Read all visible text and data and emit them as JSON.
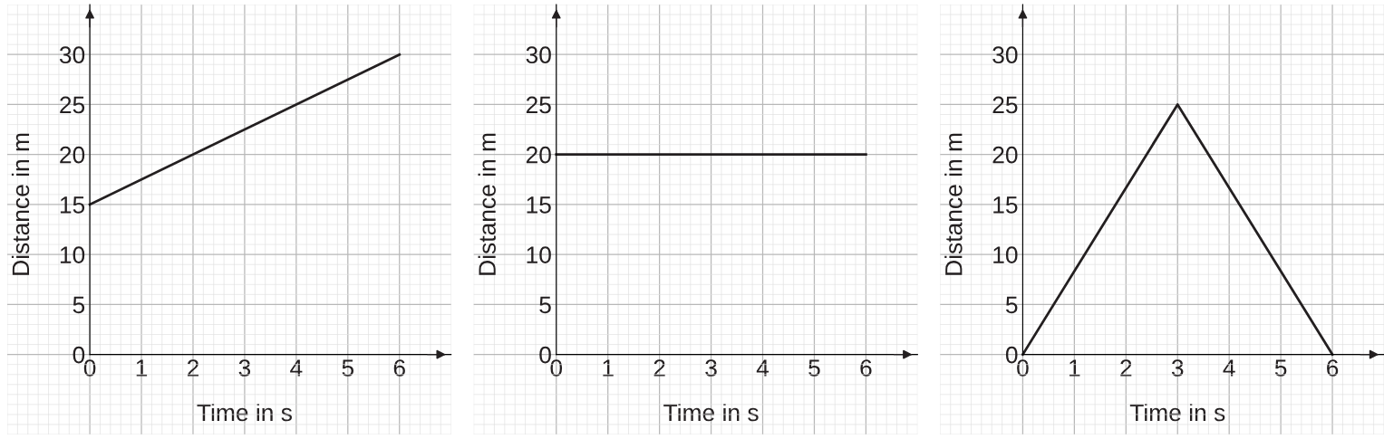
{
  "chart_data": [
    {
      "type": "line",
      "xlabel": "Time in s",
      "ylabel": "Distance in m",
      "x": [
        0,
        6
      ],
      "series": [
        {
          "color": "#231f20",
          "values": [
            15,
            30
          ]
        }
      ],
      "xlim": [
        -1.6,
        7
      ],
      "ylim": [
        -8,
        35
      ],
      "xticks": [
        0,
        1,
        2,
        3,
        4,
        5,
        6
      ],
      "yticks": [
        0,
        5,
        10,
        15,
        20,
        25,
        30
      ],
      "grid": true,
      "line_style": "solid"
    },
    {
      "type": "line",
      "xlabel": "Time in s",
      "ylabel": "Distance in m",
      "x": [
        0,
        6
      ],
      "series": [
        {
          "color": "#231f20",
          "values": [
            20,
            20
          ]
        }
      ],
      "xlim": [
        -1.6,
        7
      ],
      "ylim": [
        -8,
        35
      ],
      "xticks": [
        0,
        1,
        2,
        3,
        4,
        5,
        6
      ],
      "yticks": [
        0,
        5,
        10,
        15,
        20,
        25,
        30
      ],
      "grid": true,
      "line_style": "solid"
    },
    {
      "type": "line",
      "xlabel": "Time in s",
      "ylabel": "Distance in m",
      "x": [
        0,
        3,
        6
      ],
      "series": [
        {
          "color": "#231f20",
          "values": [
            0,
            25,
            0
          ]
        }
      ],
      "xlim": [
        -1.6,
        7
      ],
      "ylim": [
        -8,
        35
      ],
      "xticks": [
        0,
        1,
        2,
        3,
        4,
        5,
        6
      ],
      "yticks": [
        0,
        5,
        10,
        15,
        20,
        25,
        30
      ],
      "grid": true,
      "line_style": "solid"
    }
  ]
}
